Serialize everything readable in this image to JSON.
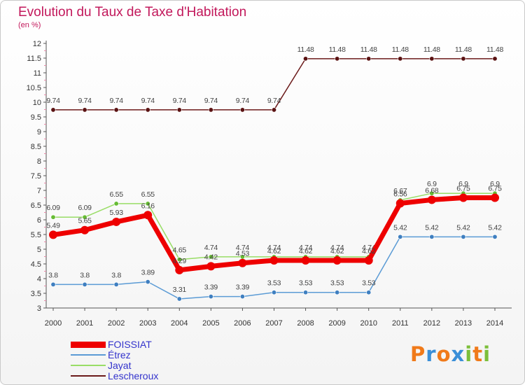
{
  "title": "Evolution du Taux de Taxe d'Habitation",
  "subtitle": "(en %)",
  "chart_data": {
    "type": "line",
    "title": "Evolution du Taux de Taxe d'Habitation",
    "ylabel": "(en %)",
    "xlabel": "",
    "ylim": [
      3,
      12
    ],
    "yticks": [
      "3",
      "3.5",
      "4",
      "4.5",
      "5",
      "5.5",
      "6",
      "6.5",
      "7",
      "7.5",
      "8",
      "8.5",
      "9",
      "9.5",
      "10",
      "10.5",
      "11",
      "11.5",
      "12"
    ],
    "categories": [
      "2000",
      "2001",
      "2002",
      "2003",
      "2004",
      "2005",
      "2006",
      "2007",
      "2008",
      "2009",
      "2010",
      "2011",
      "2012",
      "2013",
      "2014"
    ],
    "grid": false,
    "legend_position": "bottom-left",
    "series": [
      {
        "name": "Lescheroux",
        "color": "#6b1a1a",
        "marker": "#5a1212",
        "width": 1.5,
        "values": [
          9.74,
          9.74,
          9.74,
          9.74,
          9.74,
          9.74,
          9.74,
          9.74,
          11.48,
          11.48,
          11.48,
          11.48,
          11.48,
          11.48,
          11.48
        ],
        "labels": [
          "9.74",
          "9.74",
          "9.74",
          "9.74",
          "9.74",
          "9.74",
          "9.74",
          "9.74",
          "11.48",
          "11.48",
          "11.48",
          "11.48",
          "11.48",
          "11.48",
          "11.48"
        ]
      },
      {
        "name": "Étrez",
        "color": "#5b9bd5",
        "marker": "#3f7fc0",
        "width": 1.5,
        "values": [
          3.8,
          3.8,
          3.8,
          3.89,
          3.31,
          3.39,
          3.39,
          3.53,
          3.53,
          3.53,
          3.53,
          5.42,
          5.42,
          5.42,
          5.42
        ],
        "labels": [
          "3.8",
          "3.8",
          "3.8",
          "3.89",
          "3.31",
          "3.39",
          "3.39",
          "3.53",
          "3.53",
          "3.53",
          "3.53",
          "5.42",
          "5.42",
          "5.42",
          "5.42"
        ]
      },
      {
        "name": "Jayat",
        "color": "#99dd66",
        "marker": "#66bb33",
        "width": 1.5,
        "values": [
          6.09,
          6.09,
          6.55,
          6.55,
          4.65,
          4.74,
          4.74,
          4.74,
          4.74,
          4.74,
          4.74,
          6.67,
          6.9,
          6.9,
          6.9
        ],
        "labels": [
          "6.09",
          "6.09",
          "6.55",
          "6.55",
          "4.65",
          "4.74",
          "4.74",
          "4.74",
          "4.74",
          "4.74",
          "4.74",
          "6.67",
          "6.9",
          "6.9",
          "6.9"
        ]
      },
      {
        "name": "FOISSIAT",
        "color": "#ee0000",
        "marker": "#ee0000",
        "width": 7,
        "values": [
          5.49,
          5.65,
          5.93,
          6.16,
          4.29,
          4.42,
          4.53,
          4.62,
          4.62,
          4.62,
          4.62,
          6.56,
          6.68,
          6.75,
          6.75
        ],
        "labels": [
          "5.49",
          "5.65",
          "5.93",
          "6.16",
          "4.29",
          "4.42",
          "4.53",
          "4.62",
          "4.62",
          "4.62",
          "4.62",
          "6.56",
          "6.68",
          "6.75",
          "6.75"
        ]
      }
    ]
  },
  "legend": [
    {
      "name": "FOISSIAT",
      "color": "#ee0000",
      "thickness": 9
    },
    {
      "name": "Étrez",
      "color": "#5b9bd5",
      "thickness": 2
    },
    {
      "name": "Jayat",
      "color": "#99dd66",
      "thickness": 2
    },
    {
      "name": "Lescheroux",
      "color": "#6b1a1a",
      "thickness": 2
    }
  ],
  "logo": {
    "text": "Proxiti",
    "letters": [
      "P",
      "r",
      "o",
      "x",
      "i",
      "t",
      "i"
    ],
    "colors": [
      "#f07a1a",
      "#3a8fd8",
      "#f07a1a",
      "#3a8fd8",
      "#7cbf3a",
      "#f07a1a",
      "#7cbf3a"
    ]
  }
}
